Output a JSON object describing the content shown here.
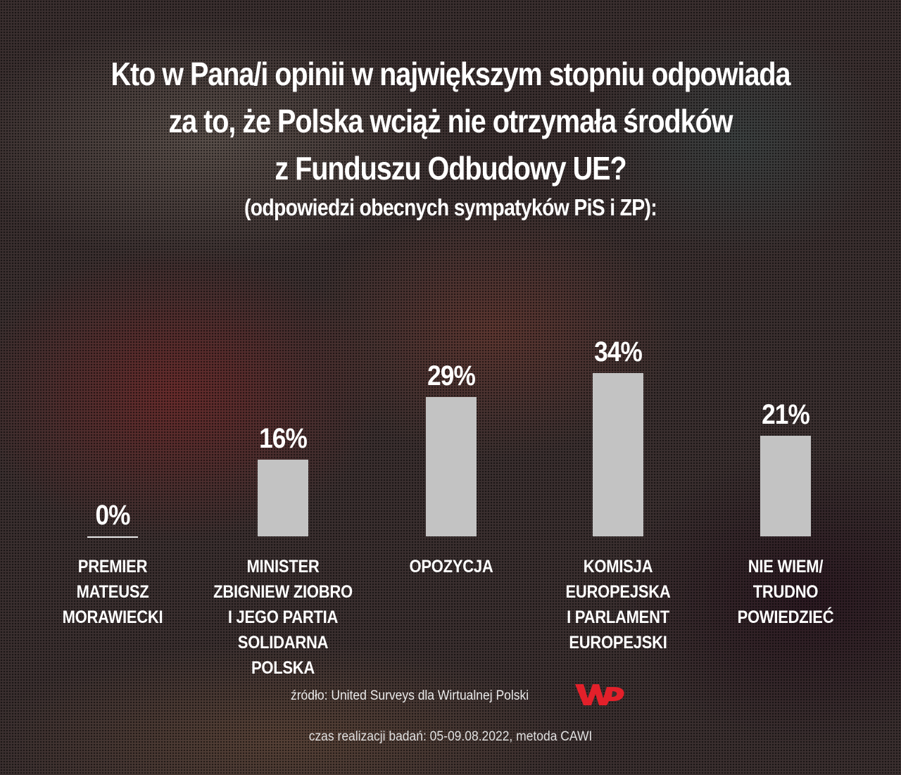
{
  "title_lines": [
    "Kto w Pana/i opinii w największym stopniu odpowiada",
    "za to, że Polska wciąż nie otrzymała środków",
    "z Funduszu Odbudowy UE?"
  ],
  "subtitle": "(odpowiedzi obecnych sympatyków PiS i ZP):",
  "footer": {
    "source": "źródło: United Surveys dla Wirtualnej Polski",
    "logo": "WP",
    "logo_color": "#e3202a",
    "method": "czas realizacji badań: 05-09.08.2022, metoda CAWI"
  },
  "colors": {
    "bar": "#c3c3c3",
    "text": "#ffffff"
  },
  "bars": [
    {
      "value_label": "0%",
      "lines": [
        "PREMIER",
        "MATEUSZ",
        "MORAWIECKI"
      ]
    },
    {
      "value_label": "16%",
      "lines": [
        "MINISTER",
        "ZBIGNIEW ZIOBRO",
        "I JEGO PARTIA",
        "SOLIDARNA POLSKA"
      ]
    },
    {
      "value_label": "29%",
      "lines": [
        "OPOZYCJA"
      ]
    },
    {
      "value_label": "34%",
      "lines": [
        "KOMISJA",
        "EUROPEJSKA",
        "I PARLAMENT",
        "EUROPEJSKI"
      ]
    },
    {
      "value_label": "21%",
      "lines": [
        "NIE WIEM/",
        "TRUDNO POWIEDZIEĆ"
      ]
    }
  ],
  "chart_data": {
    "type": "bar",
    "title": "Kto w Pana/i opinii w największym stopniu odpowiada za to, że Polska wciąż nie otrzymała środków z Funduszu Odbudowy UE?",
    "subtitle": "(odpowiedzi obecnych sympatyków PiS i ZP):",
    "categories": [
      "PREMIER MATEUSZ MORAWIECKI",
      "MINISTER ZBIGNIEW ZIOBRO I JEGO PARTIA SOLIDARNA POLSKA",
      "OPOZYCJA",
      "KOMISJA EUROPEJSKA I PARLAMENT EUROPEJSKI",
      "NIE WIEM/ TRUDNO POWIEDZIEĆ"
    ],
    "values": [
      0,
      16,
      29,
      34,
      21
    ],
    "unit": "%",
    "xlabel": "",
    "ylabel": "",
    "ylim": [
      0,
      34
    ],
    "grid": false,
    "legend": "none"
  }
}
